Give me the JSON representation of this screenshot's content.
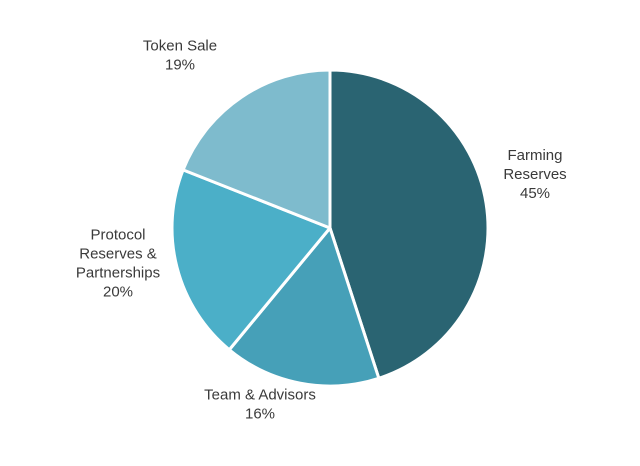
{
  "chart_data": {
    "type": "pie",
    "title": "",
    "slices": [
      {
        "label": [
          "Farming",
          "Reserves"
        ],
        "value": 45,
        "value_label": "45%",
        "color": "#2a6472"
      },
      {
        "label": [
          "Team & Advisors"
        ],
        "value": 16,
        "value_label": "16%",
        "color": "#46a0b8"
      },
      {
        "label": [
          "Protocol",
          "Reserves &",
          "Partnerships"
        ],
        "value": 20,
        "value_label": "20%",
        "color": "#4bafc8"
      },
      {
        "label": [
          "Token Sale"
        ],
        "value": 19,
        "value_label": "19%",
        "color": "#7ebbcd"
      }
    ],
    "start_angle": "12 o'clock",
    "direction": "clockwise",
    "slice_separator_color": "#ffffff",
    "legend": "none",
    "labels_position": "outside"
  }
}
